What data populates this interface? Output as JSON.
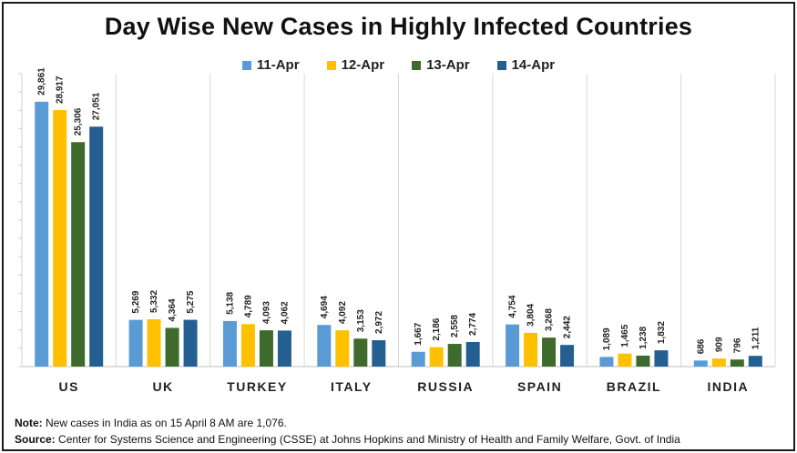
{
  "title": "Day Wise New Cases in Highly Infected Countries",
  "chart_data": {
    "type": "bar",
    "title": "Day Wise New Cases in Highly Infected Countries",
    "xlabel": "",
    "ylabel": "",
    "ylim": [
      0,
      32000
    ],
    "grid": false,
    "legend_position": "top-center",
    "categories": [
      "US",
      "UK",
      "TURKEY",
      "ITALY",
      "RUSSIA",
      "SPAIN",
      "BRAZIL",
      "INDIA"
    ],
    "series": [
      {
        "name": "11-Apr",
        "color": "#5B9BD5",
        "values": [
          29861,
          5269,
          5138,
          4694,
          1667,
          4754,
          1089,
          686
        ]
      },
      {
        "name": "12-Apr",
        "color": "#FFC000",
        "values": [
          28917,
          5332,
          4789,
          4092,
          2186,
          3804,
          1465,
          909
        ]
      },
      {
        "name": "13-Apr",
        "color": "#3F6A2E",
        "values": [
          25306,
          4364,
          4093,
          3153,
          2558,
          3268,
          1238,
          796
        ]
      },
      {
        "name": "14-Apr",
        "color": "#255E91",
        "values": [
          27051,
          5275,
          4062,
          2972,
          2774,
          2442,
          1832,
          1211
        ]
      }
    ]
  },
  "notes": {
    "note_label": "Note:",
    "note_text": " New cases in India as on 15 April 8 AM are 1,076.",
    "source_label": "Source:",
    "source_text": " Center for Systems Science and Engineering (CSSE) at Johns Hopkins and Ministry of Health and Family Welfare, Govt. of India"
  }
}
